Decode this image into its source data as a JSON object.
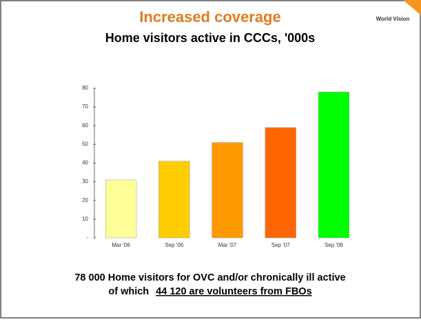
{
  "logo": "World Vision",
  "chart_data": {
    "type": "bar",
    "title": "Increased coverage",
    "subtitle": "Home visitors active in CCCs, '000s",
    "categories": [
      "Mar '06",
      "Sep '06",
      "Mar '07",
      "Sep '07",
      "Sep '08"
    ],
    "values": [
      31,
      41,
      51,
      59,
      78
    ],
    "colors": [
      "#ffff99",
      "#ffcc00",
      "#ff9900",
      "#ff6600",
      "#00ff00"
    ],
    "ylim": [
      0,
      80
    ],
    "yticks": [
      {
        "value": 0,
        "label": "-"
      },
      10,
      20,
      30,
      40,
      50,
      60,
      70,
      80
    ],
    "grid": false
  },
  "footer": {
    "line1": "78 000 Home visitors for OVC and/or chronically ill active",
    "line2_prefix": "of which",
    "line2_underlined": "44 120 are volunteers from FBOs"
  }
}
